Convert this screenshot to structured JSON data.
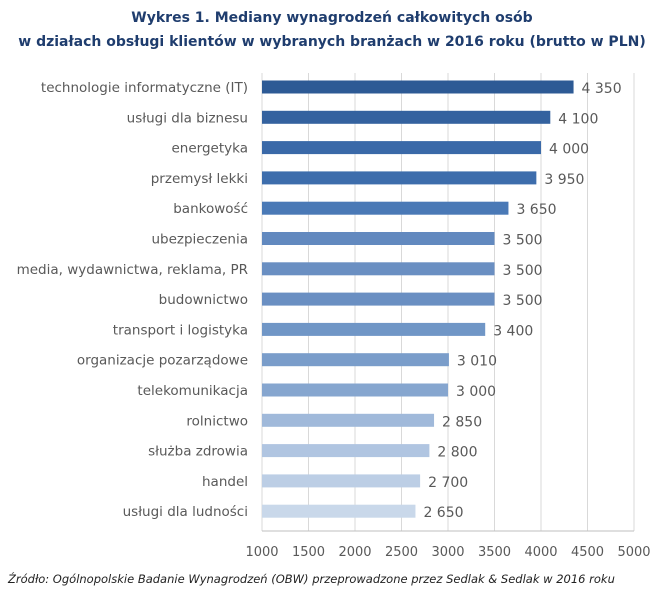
{
  "chart_data": {
    "type": "bar",
    "orientation": "horizontal",
    "title_lines": [
      "Wykres 1. Mediany wynagrodzeń całkowitych osób",
      "w działach obsługi klientów w wybranych branżach w 2016 roku (brutto w PLN)"
    ],
    "categories": [
      "technologie informatyczne (IT)",
      "usługi dla biznesu",
      "energetyka",
      "przemysł lekki",
      "bankowość",
      "ubezpieczenia",
      "media, wydawnictwa, reklama, PR",
      "budownictwo",
      "transport i logistyka",
      "organizacje pozarządowe",
      "telekomunikacja",
      "rolnictwo",
      "służba zdrowia",
      "handel",
      "usługi dla ludności"
    ],
    "values": [
      4350,
      4100,
      4000,
      3950,
      3650,
      3500,
      3500,
      3500,
      3400,
      3010,
      3000,
      2850,
      2800,
      2700,
      2650
    ],
    "value_labels": [
      "4 350",
      "4 100",
      "4 000",
      "3 950",
      "3 650",
      "3 500",
      "3 500",
      "3 500",
      "3 400",
      "3 010",
      "3 000",
      "2 850",
      "2 800",
      "2 700",
      "2 650"
    ],
    "bar_colors": [
      "#2d5a95",
      "#34629f",
      "#3a69a8",
      "#3d6dac",
      "#4a79b6",
      "#6289bf",
      "#6a8fc2",
      "#6a8fc2",
      "#7096c6",
      "#7a9dca",
      "#86a6cf",
      "#a0b9da",
      "#b0c5e1",
      "#bccee5",
      "#c9d8ea"
    ],
    "xlim": [
      1000,
      5000
    ],
    "xticks": [
      "1000",
      "1500",
      "2000",
      "2500",
      "3000",
      "3500",
      "4000",
      "4500",
      "5000"
    ],
    "xlabel": "",
    "ylabel": "",
    "grid": true,
    "legend": "none"
  },
  "source_note": "Źródło: Ogólnopolskie Badanie Wynagrodzeń (OBW) przeprowadzone przez Sedlak & Sedlak w 2016 roku"
}
